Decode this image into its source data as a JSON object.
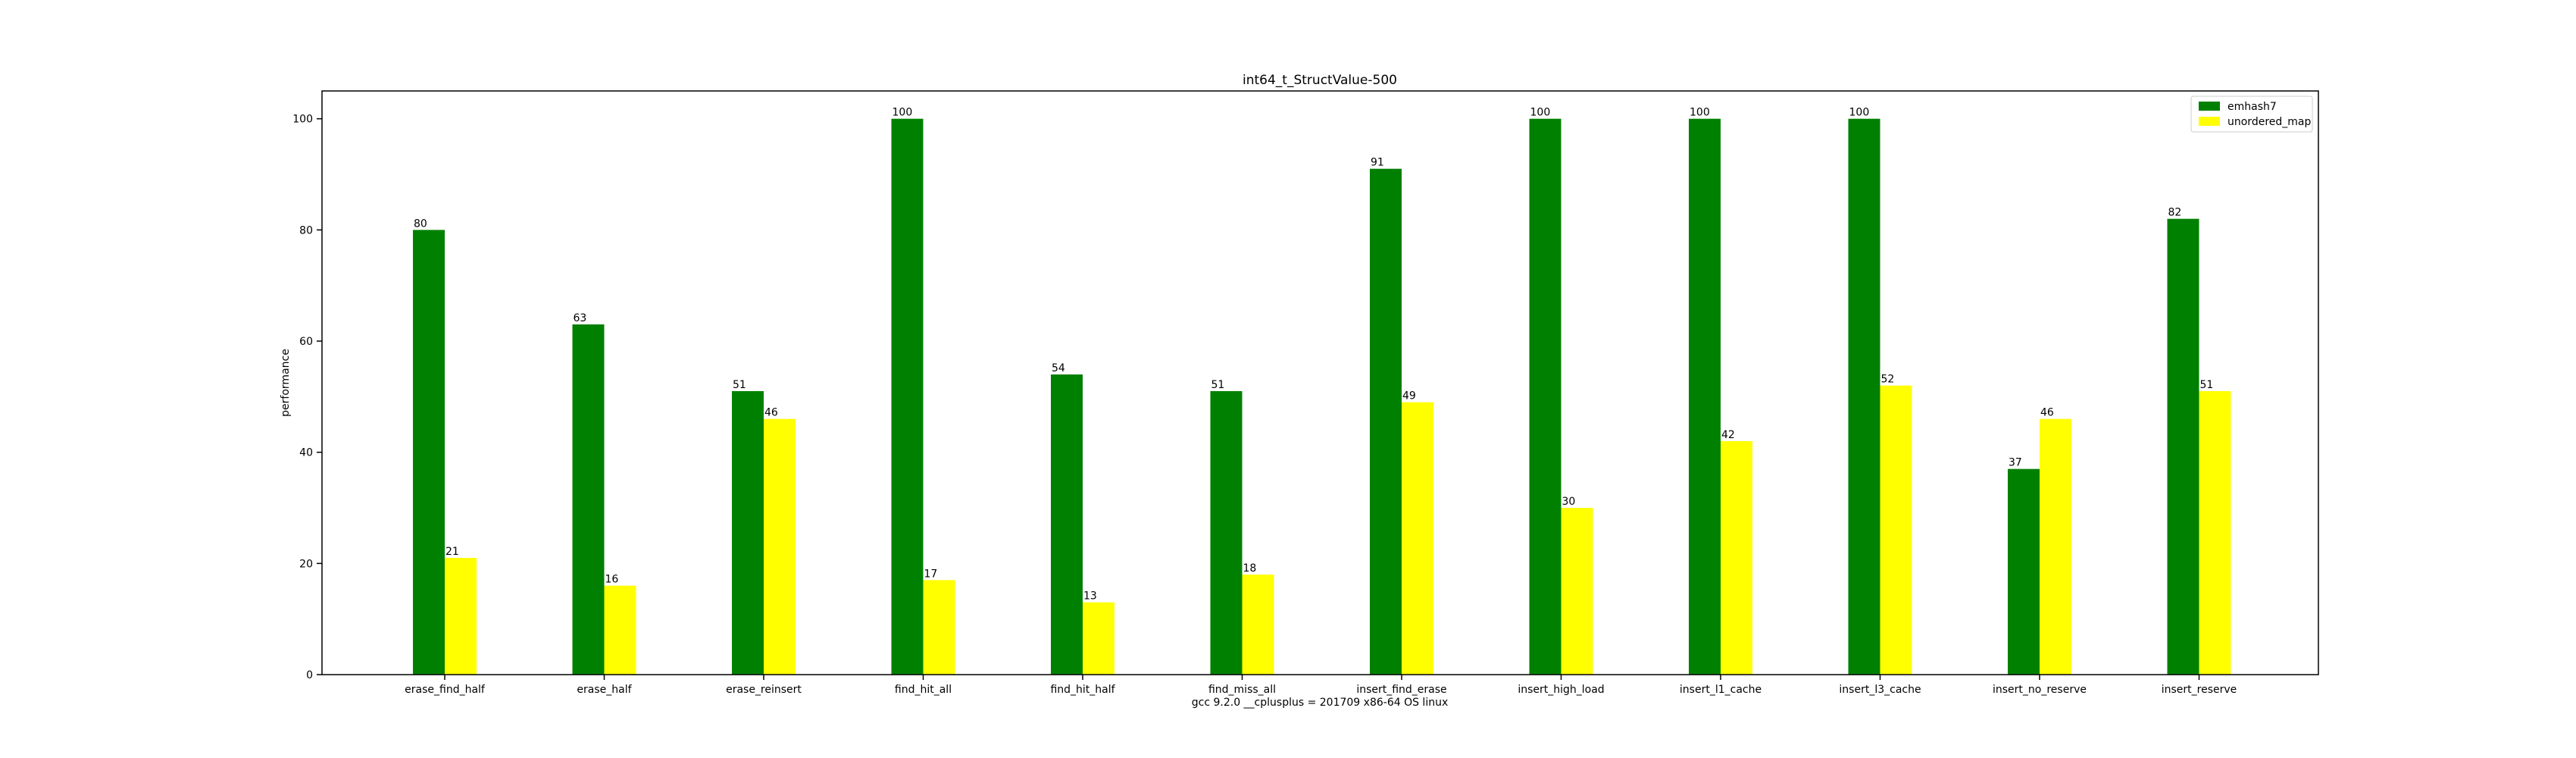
{
  "chart_data": {
    "type": "bar",
    "title": "int64_t_StructValue-500",
    "xlabel": "gcc 9.2.0 __cplusplus = 201709 x86-64 OS linux",
    "ylabel": "performance",
    "ylim": [
      0,
      105
    ],
    "yticks": [
      0,
      20,
      40,
      60,
      80,
      100
    ],
    "categories": [
      "erase_find_half",
      "erase_half",
      "erase_reinsert",
      "find_hit_all",
      "find_hit_half",
      "find_miss_all",
      "insert_find_erase",
      "insert_high_load",
      "insert_l1_cache",
      "insert_l3_cache",
      "insert_no_reserve",
      "insert_reserve"
    ],
    "series": [
      {
        "name": "emhash7",
        "color": "#008000",
        "values": [
          80,
          63,
          51,
          100,
          54,
          51,
          91,
          100,
          100,
          100,
          37,
          82
        ]
      },
      {
        "name": "unordered_map",
        "color": "#ffff00",
        "values": [
          21,
          16,
          46,
          17,
          13,
          18,
          49,
          30,
          42,
          52,
          46,
          51
        ]
      }
    ],
    "legend_position": "top-right",
    "grid": false
  }
}
